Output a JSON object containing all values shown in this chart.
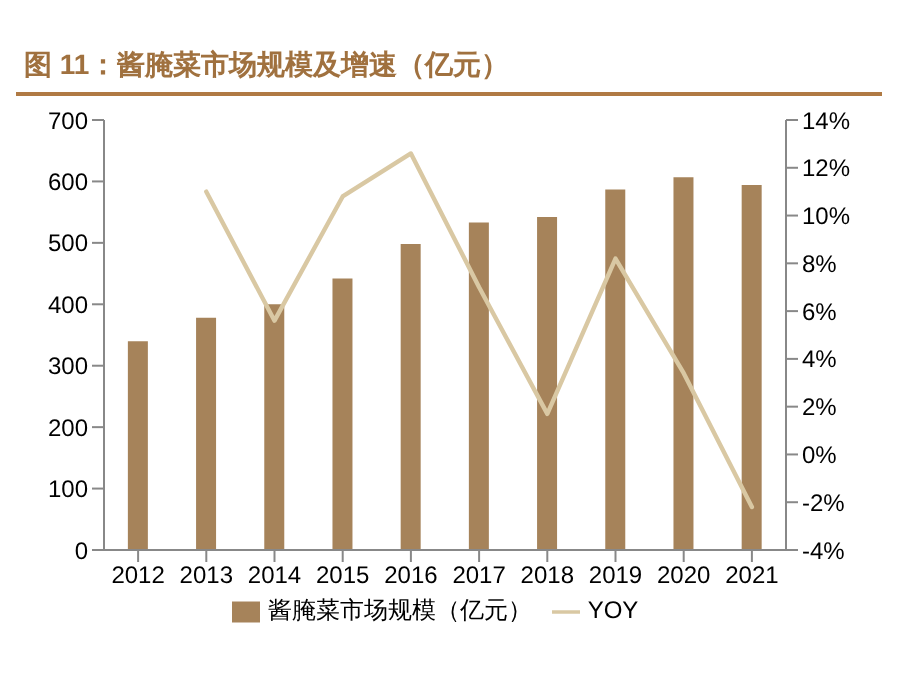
{
  "chart_data": {
    "type": "bar",
    "title": "图 11：酱腌菜市场规模及增速（亿元）",
    "categories": [
      "2012",
      "2013",
      "2014",
      "2015",
      "2016",
      "2017",
      "2018",
      "2019",
      "2020",
      "2021"
    ],
    "series": [
      {
        "name": "酱腌菜市场规模（亿元）",
        "color": "#a6835a",
        "values": [
          340,
          378,
          400,
          442,
          498,
          533,
          542,
          587,
          607,
          594
        ]
      },
      {
        "name": "YOY",
        "type": "line",
        "axis": "y2",
        "color": "#d9c8a3",
        "values": [
          null,
          11.0,
          5.6,
          10.8,
          12.6,
          7.0,
          1.7,
          8.2,
          3.4,
          -2.2
        ]
      }
    ],
    "ylim": [
      0,
      700
    ],
    "yticks": [
      0,
      100,
      200,
      300,
      400,
      500,
      600,
      700
    ],
    "y2lim": [
      -4,
      14
    ],
    "y2ticks": [
      {
        "value": -4,
        "label": "-4%"
      },
      {
        "value": -2,
        "label": "-2%"
      },
      {
        "value": 0,
        "label": "0%"
      },
      {
        "value": 2,
        "label": "2%"
      },
      {
        "value": 4,
        "label": "4%"
      },
      {
        "value": 6,
        "label": "6%"
      },
      {
        "value": 8,
        "label": "8%"
      },
      {
        "value": 10,
        "label": "10%"
      },
      {
        "value": 12,
        "label": "12%"
      },
      {
        "value": 14,
        "label": "14%"
      }
    ],
    "grid": false,
    "legend": "bottom",
    "marker": "none"
  }
}
